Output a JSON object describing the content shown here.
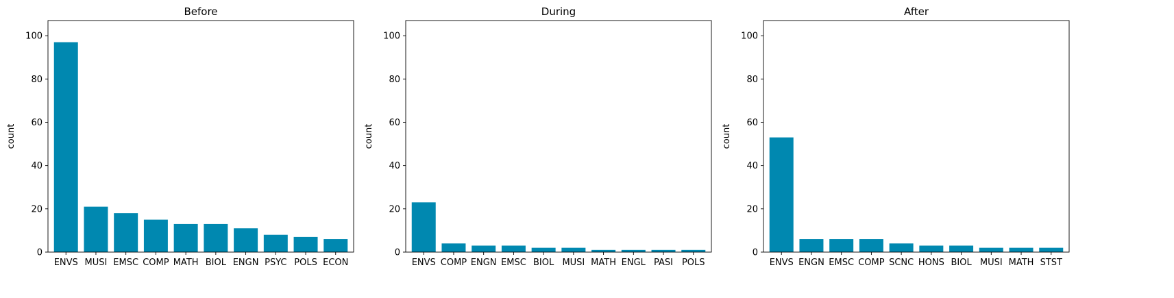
{
  "chart_data": [
    {
      "type": "bar",
      "title": "Before",
      "xlabel": "",
      "ylabel": "count",
      "ylim": [
        0,
        107
      ],
      "yticks": [
        0,
        20,
        40,
        60,
        80,
        100
      ],
      "color": "#0088b0",
      "categories": [
        "ENVS",
        "MUSI",
        "EMSC",
        "COMP",
        "MATH",
        "BIOL",
        "ENGN",
        "PSYC",
        "POLS",
        "ECON"
      ],
      "values": [
        97,
        21,
        18,
        15,
        13,
        13,
        11,
        8,
        7,
        6
      ]
    },
    {
      "type": "bar",
      "title": "During",
      "xlabel": "",
      "ylabel": "count",
      "ylim": [
        0,
        107
      ],
      "yticks": [
        0,
        20,
        40,
        60,
        80,
        100
      ],
      "color": "#0088b0",
      "categories": [
        "ENVS",
        "COMP",
        "ENGN",
        "EMSC",
        "BIOL",
        "MUSI",
        "MATH",
        "ENGL",
        "PASI",
        "POLS"
      ],
      "values": [
        23,
        4,
        3,
        3,
        2,
        2,
        1,
        1,
        1,
        1
      ]
    },
    {
      "type": "bar",
      "title": "After",
      "xlabel": "",
      "ylabel": "count",
      "ylim": [
        0,
        107
      ],
      "yticks": [
        0,
        20,
        40,
        60,
        80,
        100
      ],
      "color": "#0088b0",
      "categories": [
        "ENVS",
        "ENGN",
        "EMSC",
        "COMP",
        "SCNC",
        "HONS",
        "BIOL",
        "MUSI",
        "MATH",
        "STST"
      ],
      "values": [
        53,
        6,
        6,
        6,
        4,
        3,
        3,
        2,
        2,
        2
      ]
    }
  ]
}
